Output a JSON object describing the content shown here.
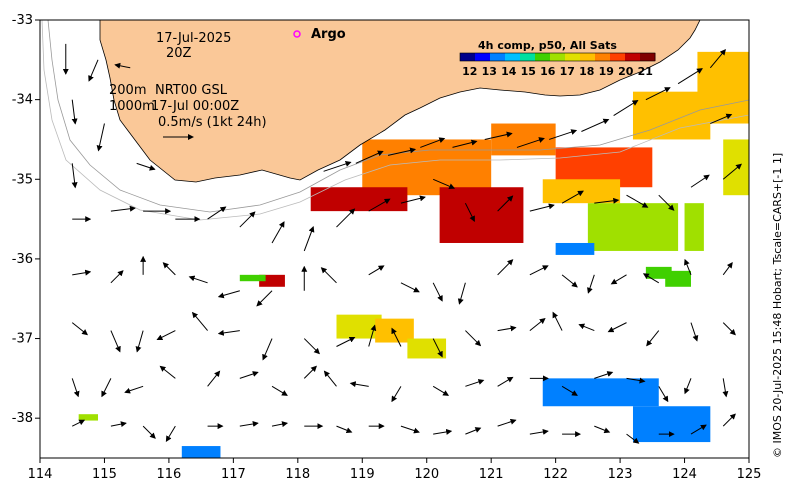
{
  "header": {
    "date": "17-Jul-2025",
    "time": "20Z",
    "argo_label": "Argo"
  },
  "info": {
    "line1_depth": "200m",
    "line1_text": "NRT00 GSL",
    "line2_depth": "1000m",
    "line2_text": "17-Jul 00:00Z",
    "scale_text": "0.5m/s (1kt 24h)"
  },
  "colorbar": {
    "title": "4h comp, p50, All Sats",
    "ticks": [
      "12",
      "13",
      "14",
      "15",
      "16",
      "17",
      "18",
      "19",
      "20",
      "21"
    ],
    "colors": [
      "#00008b",
      "#0000ff",
      "#0080ff",
      "#00c0ff",
      "#00e0a0",
      "#40d000",
      "#a0e000",
      "#e0e000",
      "#ffc000",
      "#ff8000",
      "#ff4000",
      "#c00000",
      "#800000"
    ]
  },
  "axes": {
    "x_ticks": [
      "114",
      "115",
      "116",
      "117",
      "118",
      "119",
      "120",
      "121",
      "122",
      "123",
      "124",
      "125"
    ],
    "y_ticks": [
      "-33",
      "-34",
      "-35",
      "-36",
      "-37",
      "-38"
    ],
    "xlim": [
      114,
      125
    ],
    "ylim": [
      -38.5,
      -33
    ]
  },
  "credit": "© IMOS 20-Jul-2025 15:48 Hobart; Tscale=CARS+[-1 1]",
  "colors": {
    "land": "#fac898",
    "arrow": "#000000",
    "argo": "#ff00ff"
  },
  "sst_patches": [
    {
      "lon": 119.0,
      "lat": -34.5,
      "w": 2.0,
      "h": 0.7,
      "temp": 18.5
    },
    {
      "lon": 121.0,
      "lat": -34.3,
      "w": 1.0,
      "h": 0.4,
      "temp": 19.0
    },
    {
      "lon": 122.0,
      "lat": -34.6,
      "w": 1.5,
      "h": 0.5,
      "temp": 19.5
    },
    {
      "lon": 123.2,
      "lat": -33.9,
      "w": 1.2,
      "h": 0.6,
      "temp": 18.3
    },
    {
      "lon": 124.2,
      "lat": -33.4,
      "w": 0.8,
      "h": 0.9,
      "temp": 17.8
    },
    {
      "lon": 124.6,
      "lat": -34.5,
      "w": 0.4,
      "h": 0.7,
      "temp": 17.0
    },
    {
      "lon": 118.2,
      "lat": -35.1,
      "w": 1.5,
      "h": 0.3,
      "temp": 20.0
    },
    {
      "lon": 120.2,
      "lat": -35.1,
      "w": 1.3,
      "h": 0.7,
      "temp": 20.3
    },
    {
      "lon": 121.8,
      "lat": -35.0,
      "w": 1.2,
      "h": 0.3,
      "temp": 18.0
    },
    {
      "lon": 122.5,
      "lat": -35.3,
      "w": 1.4,
      "h": 0.6,
      "temp": 16.2
    },
    {
      "lon": 124.0,
      "lat": -35.3,
      "w": 0.3,
      "h": 0.6,
      "temp": 16.4
    },
    {
      "lon": 117.4,
      "lat": -36.2,
      "w": 0.4,
      "h": 0.15,
      "temp": 20.0
    },
    {
      "lon": 118.6,
      "lat": -36.7,
      "w": 0.7,
      "h": 0.3,
      "temp": 17.2
    },
    {
      "lon": 119.2,
      "lat": -36.75,
      "w": 0.6,
      "h": 0.3,
      "temp": 17.8
    },
    {
      "lon": 119.7,
      "lat": -37.0,
      "w": 0.6,
      "h": 0.25,
      "temp": 17.5
    },
    {
      "lon": 122.0,
      "lat": -35.8,
      "w": 0.6,
      "h": 0.15,
      "temp": 13.8
    },
    {
      "lon": 123.4,
      "lat": -36.1,
      "w": 0.4,
      "h": 0.15,
      "temp": 16.0
    },
    {
      "lon": 123.7,
      "lat": -36.15,
      "w": 0.4,
      "h": 0.2,
      "temp": 15.8
    },
    {
      "lon": 121.8,
      "lat": -37.5,
      "w": 1.8,
      "h": 0.35,
      "temp": 13.5
    },
    {
      "lon": 123.2,
      "lat": -37.85,
      "w": 1.2,
      "h": 0.45,
      "temp": 13.6
    },
    {
      "lon": 116.2,
      "lat": -38.35,
      "w": 0.6,
      "h": 0.2,
      "temp": 13.5
    },
    {
      "lon": 117.1,
      "lat": -36.2,
      "w": 0.4,
      "h": 0.08,
      "temp": 16.0
    },
    {
      "lon": 114.6,
      "lat": -37.95,
      "w": 0.3,
      "h": 0.08,
      "temp": 16.5
    }
  ],
  "currents": [
    {
      "lon": 114.4,
      "lat": -33.3,
      "u": 0,
      "v": -1
    },
    {
      "lon": 114.9,
      "lat": -33.5,
      "u": -0.3,
      "v": -0.7
    },
    {
      "lon": 115.4,
      "lat": -33.6,
      "u": -0.5,
      "v": 0.1
    },
    {
      "lon": 114.5,
      "lat": -34.0,
      "u": 0.1,
      "v": -0.8
    },
    {
      "lon": 115.0,
      "lat": -34.3,
      "u": -0.2,
      "v": -0.9
    },
    {
      "lon": 115.5,
      "lat": -34.8,
      "u": 0.6,
      "v": -0.2
    },
    {
      "lon": 114.5,
      "lat": -34.8,
      "u": 0.1,
      "v": -0.8
    },
    {
      "lon": 114.5,
      "lat": -35.5,
      "u": 0.6,
      "v": 0.0
    },
    {
      "lon": 115.1,
      "lat": -35.4,
      "u": 0.8,
      "v": 0.1
    },
    {
      "lon": 115.6,
      "lat": -35.4,
      "u": 0.9,
      "v": 0.0
    },
    {
      "lon": 116.1,
      "lat": -35.5,
      "u": 0.8,
      "v": 0.0
    },
    {
      "lon": 116.6,
      "lat": -35.5,
      "u": 0.6,
      "v": 0.4
    },
    {
      "lon": 117.1,
      "lat": -35.6,
      "u": 0.5,
      "v": 0.5
    },
    {
      "lon": 117.6,
      "lat": -35.8,
      "u": 0.4,
      "v": 0.7
    },
    {
      "lon": 118.1,
      "lat": -35.9,
      "u": 0.3,
      "v": 0.8
    },
    {
      "lon": 118.6,
      "lat": -35.6,
      "u": 0.6,
      "v": 0.6
    },
    {
      "lon": 119.1,
      "lat": -35.4,
      "u": 0.7,
      "v": 0.4
    },
    {
      "lon": 119.6,
      "lat": -35.3,
      "u": 0.8,
      "v": 0.2
    },
    {
      "lon": 120.1,
      "lat": -35.0,
      "u": 0.7,
      "v": -0.3
    },
    {
      "lon": 120.6,
      "lat": -35.3,
      "u": 0.3,
      "v": -0.6
    },
    {
      "lon": 121.1,
      "lat": -35.4,
      "u": 0.5,
      "v": 0.5
    },
    {
      "lon": 121.6,
      "lat": -35.4,
      "u": 0.8,
      "v": 0.2
    },
    {
      "lon": 122.1,
      "lat": -35.3,
      "u": 0.7,
      "v": 0.4
    },
    {
      "lon": 122.6,
      "lat": -35.3,
      "u": 0.8,
      "v": 0.1
    },
    {
      "lon": 123.1,
      "lat": -35.2,
      "u": 0.7,
      "v": -0.4
    },
    {
      "lon": 123.6,
      "lat": -35.2,
      "u": 0.5,
      "v": -0.5
    },
    {
      "lon": 124.1,
      "lat": -35.1,
      "u": 0.6,
      "v": 0.4
    },
    {
      "lon": 124.6,
      "lat": -35.0,
      "u": 0.6,
      "v": 0.5
    },
    {
      "lon": 118.4,
      "lat": -34.9,
      "u": 0.9,
      "v": 0.3
    },
    {
      "lon": 118.9,
      "lat": -34.8,
      "u": 0.9,
      "v": 0.4
    },
    {
      "lon": 119.4,
      "lat": -34.7,
      "u": 0.9,
      "v": 0.2
    },
    {
      "lon": 119.9,
      "lat": -34.6,
      "u": 0.8,
      "v": 0.3
    },
    {
      "lon": 120.4,
      "lat": -34.6,
      "u": 0.8,
      "v": 0.2
    },
    {
      "lon": 120.9,
      "lat": -34.5,
      "u": 0.9,
      "v": 0.2
    },
    {
      "lon": 121.4,
      "lat": -34.6,
      "u": 0.9,
      "v": 0.3
    },
    {
      "lon": 121.9,
      "lat": -34.5,
      "u": 0.9,
      "v": 0.3
    },
    {
      "lon": 122.4,
      "lat": -34.4,
      "u": 0.9,
      "v": 0.4
    },
    {
      "lon": 122.9,
      "lat": -34.2,
      "u": 0.8,
      "v": 0.5
    },
    {
      "lon": 123.4,
      "lat": -34.0,
      "u": 0.8,
      "v": 0.4
    },
    {
      "lon": 123.9,
      "lat": -33.8,
      "u": 0.8,
      "v": 0.5
    },
    {
      "lon": 124.4,
      "lat": -33.6,
      "u": 0.5,
      "v": 0.6
    },
    {
      "lon": 124.4,
      "lat": -34.3,
      "u": 0.7,
      "v": 0.3
    },
    {
      "lon": 114.5,
      "lat": -36.2,
      "u": 0.6,
      "v": 0.1
    },
    {
      "lon": 115.1,
      "lat": -36.3,
      "u": 0.4,
      "v": 0.4
    },
    {
      "lon": 115.6,
      "lat": -36.2,
      "u": 0.0,
      "v": 0.6
    },
    {
      "lon": 116.1,
      "lat": -36.2,
      "u": -0.4,
      "v": 0.4
    },
    {
      "lon": 116.6,
      "lat": -36.3,
      "u": -0.6,
      "v": 0.2
    },
    {
      "lon": 117.1,
      "lat": -36.4,
      "u": -0.7,
      "v": -0.2
    },
    {
      "lon": 117.6,
      "lat": -36.4,
      "u": -0.5,
      "v": -0.5
    },
    {
      "lon": 118.1,
      "lat": -36.4,
      "u": 0.0,
      "v": 0.8
    },
    {
      "lon": 118.6,
      "lat": -36.3,
      "u": -0.5,
      "v": 0.5
    },
    {
      "lon": 119.1,
      "lat": -36.2,
      "u": 0.5,
      "v": 0.3
    },
    {
      "lon": 119.6,
      "lat": -36.3,
      "u": 0.6,
      "v": -0.3
    },
    {
      "lon": 120.1,
      "lat": -36.3,
      "u": 0.3,
      "v": -0.6
    },
    {
      "lon": 120.6,
      "lat": -36.3,
      "u": -0.2,
      "v": -0.7
    },
    {
      "lon": 121.1,
      "lat": -36.2,
      "u": 0.5,
      "v": 0.5
    },
    {
      "lon": 121.6,
      "lat": -36.2,
      "u": 0.6,
      "v": 0.3
    },
    {
      "lon": 122.1,
      "lat": -36.2,
      "u": 0.5,
      "v": -0.4
    },
    {
      "lon": 122.6,
      "lat": -36.2,
      "u": -0.2,
      "v": -0.6
    },
    {
      "lon": 123.1,
      "lat": -36.2,
      "u": -0.5,
      "v": -0.3
    },
    {
      "lon": 123.6,
      "lat": -36.3,
      "u": -0.5,
      "v": 0.3
    },
    {
      "lon": 124.1,
      "lat": -36.2,
      "u": -0.2,
      "v": 0.5
    },
    {
      "lon": 124.6,
      "lat": -36.2,
      "u": 0.3,
      "v": 0.4
    },
    {
      "lon": 114.5,
      "lat": -36.8,
      "u": 0.5,
      "v": -0.4
    },
    {
      "lon": 115.1,
      "lat": -36.9,
      "u": 0.3,
      "v": -0.7
    },
    {
      "lon": 115.6,
      "lat": -36.9,
      "u": -0.2,
      "v": -0.7
    },
    {
      "lon": 116.1,
      "lat": -36.9,
      "u": -0.6,
      "v": -0.3
    },
    {
      "lon": 116.6,
      "lat": -36.9,
      "u": -0.5,
      "v": 0.6
    },
    {
      "lon": 117.1,
      "lat": -36.9,
      "u": -0.7,
      "v": -0.1
    },
    {
      "lon": 117.6,
      "lat": -37.0,
      "u": -0.3,
      "v": -0.7
    },
    {
      "lon": 118.1,
      "lat": -37.0,
      "u": 0.5,
      "v": -0.5
    },
    {
      "lon": 118.6,
      "lat": -37.1,
      "u": 0.6,
      "v": 0.3
    },
    {
      "lon": 119.1,
      "lat": -37.1,
      "u": 0.2,
      "v": 0.7
    },
    {
      "lon": 119.6,
      "lat": -37.1,
      "u": -0.3,
      "v": 0.6
    },
    {
      "lon": 120.1,
      "lat": -37.0,
      "u": 0.3,
      "v": -0.6
    },
    {
      "lon": 120.6,
      "lat": -36.9,
      "u": 0.5,
      "v": -0.5
    },
    {
      "lon": 121.1,
      "lat": -36.9,
      "u": 0.6,
      "v": 0.1
    },
    {
      "lon": 121.6,
      "lat": -36.9,
      "u": 0.5,
      "v": 0.4
    },
    {
      "lon": 122.1,
      "lat": -36.9,
      "u": -0.3,
      "v": 0.6
    },
    {
      "lon": 122.6,
      "lat": -36.9,
      "u": -0.5,
      "v": 0.2
    },
    {
      "lon": 123.1,
      "lat": -36.8,
      "u": -0.6,
      "v": -0.3
    },
    {
      "lon": 123.6,
      "lat": -36.9,
      "u": -0.4,
      "v": -0.5
    },
    {
      "lon": 124.1,
      "lat": -36.8,
      "u": 0.2,
      "v": -0.6
    },
    {
      "lon": 124.6,
      "lat": -36.8,
      "u": 0.4,
      "v": -0.4
    },
    {
      "lon": 114.5,
      "lat": -37.5,
      "u": 0.2,
      "v": -0.6
    },
    {
      "lon": 115.1,
      "lat": -37.5,
      "u": -0.3,
      "v": -0.6
    },
    {
      "lon": 115.6,
      "lat": -37.6,
      "u": -0.6,
      "v": -0.2
    },
    {
      "lon": 116.1,
      "lat": -37.5,
      "u": -0.5,
      "v": 0.4
    },
    {
      "lon": 116.6,
      "lat": -37.6,
      "u": 0.4,
      "v": 0.5
    },
    {
      "lon": 117.1,
      "lat": -37.5,
      "u": 0.6,
      "v": 0.2
    },
    {
      "lon": 117.6,
      "lat": -37.6,
      "u": 0.5,
      "v": -0.3
    },
    {
      "lon": 118.1,
      "lat": -37.5,
      "u": 0.4,
      "v": 0.4
    },
    {
      "lon": 118.6,
      "lat": -37.6,
      "u": -0.4,
      "v": 0.5
    },
    {
      "lon": 119.1,
      "lat": -37.6,
      "u": -0.6,
      "v": 0.1
    },
    {
      "lon": 119.6,
      "lat": -37.6,
      "u": -0.3,
      "v": -0.5
    },
    {
      "lon": 120.1,
      "lat": -37.6,
      "u": 0.5,
      "v": -0.3
    },
    {
      "lon": 120.6,
      "lat": -37.6,
      "u": 0.6,
      "v": 0.2
    },
    {
      "lon": 121.1,
      "lat": -37.6,
      "u": 0.5,
      "v": 0.3
    },
    {
      "lon": 121.6,
      "lat": -37.5,
      "u": 0.6,
      "v": 0.0
    },
    {
      "lon": 122.1,
      "lat": -37.6,
      "u": 0.5,
      "v": -0.3
    },
    {
      "lon": 122.6,
      "lat": -37.5,
      "u": 0.6,
      "v": 0.2
    },
    {
      "lon": 123.1,
      "lat": -37.5,
      "u": 0.6,
      "v": -0.1
    },
    {
      "lon": 123.6,
      "lat": -37.6,
      "u": 0.3,
      "v": -0.5
    },
    {
      "lon": 124.1,
      "lat": -37.5,
      "u": -0.2,
      "v": -0.5
    },
    {
      "lon": 124.6,
      "lat": -37.5,
      "u": 0.1,
      "v": -0.6
    },
    {
      "lon": 114.5,
      "lat": -38.1,
      "u": 0.4,
      "v": 0.2
    },
    {
      "lon": 115.1,
      "lat": -38.1,
      "u": 0.5,
      "v": 0.1
    },
    {
      "lon": 115.6,
      "lat": -38.1,
      "u": 0.4,
      "v": -0.4
    },
    {
      "lon": 116.1,
      "lat": -38.1,
      "u": -0.3,
      "v": -0.5
    },
    {
      "lon": 116.6,
      "lat": -38.1,
      "u": 0.5,
      "v": 0.0
    },
    {
      "lon": 117.1,
      "lat": -38.1,
      "u": 0.6,
      "v": 0.1
    },
    {
      "lon": 117.6,
      "lat": -38.1,
      "u": 0.5,
      "v": 0.1
    },
    {
      "lon": 118.1,
      "lat": -38.1,
      "u": 0.6,
      "v": 0.0
    },
    {
      "lon": 118.6,
      "lat": -38.1,
      "u": 0.5,
      "v": -0.2
    },
    {
      "lon": 119.1,
      "lat": -38.1,
      "u": 0.5,
      "v": 0.0
    },
    {
      "lon": 119.6,
      "lat": -38.1,
      "u": 0.6,
      "v": -0.2
    },
    {
      "lon": 120.1,
      "lat": -38.2,
      "u": 0.6,
      "v": 0.1
    },
    {
      "lon": 120.6,
      "lat": -38.2,
      "u": 0.5,
      "v": 0.2
    },
    {
      "lon": 121.1,
      "lat": -38.1,
      "u": 0.6,
      "v": 0.2
    },
    {
      "lon": 121.6,
      "lat": -38.2,
      "u": 0.6,
      "v": 0.1
    },
    {
      "lon": 122.1,
      "lat": -38.2,
      "u": 0.6,
      "v": 0.0
    },
    {
      "lon": 122.6,
      "lat": -38.1,
      "u": 0.5,
      "v": -0.2
    },
    {
      "lon": 123.1,
      "lat": -38.2,
      "u": 0.4,
      "v": -0.3
    },
    {
      "lon": 123.6,
      "lat": -38.2,
      "u": 0.5,
      "v": 0.0
    },
    {
      "lon": 124.1,
      "lat": -38.2,
      "u": 0.5,
      "v": 0.3
    },
    {
      "lon": 124.6,
      "lat": -38.1,
      "u": 0.4,
      "v": 0.4
    }
  ]
}
